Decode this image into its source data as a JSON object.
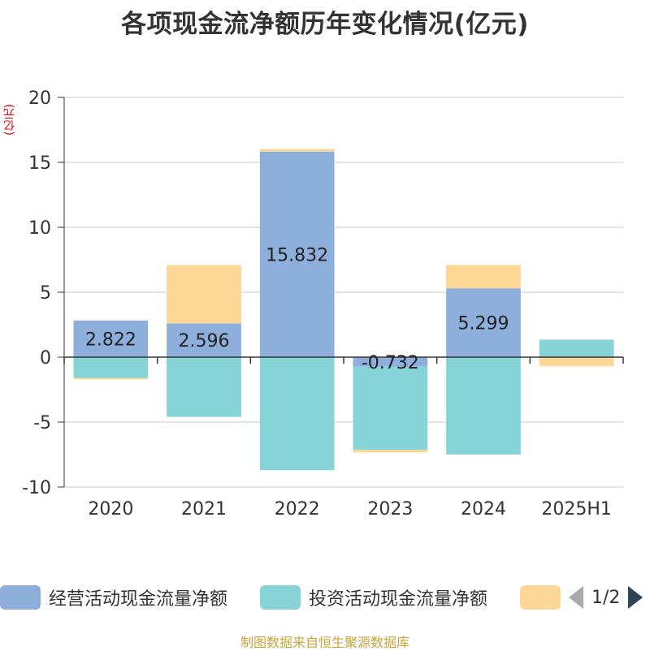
{
  "title": "各项现金流净额历年变化情况(亿元)",
  "unit_label": "(亿元)",
  "source": "制图数据来自恒生聚源数据库",
  "pager": {
    "text": "1/2"
  },
  "colors": {
    "operating": "#8eaedb",
    "investing": "#86d4d8",
    "financing": "#fdd795",
    "unit": "#dd0000",
    "source": "#c8a43a"
  },
  "chart_data": {
    "type": "bar",
    "stacked": true,
    "categories": [
      "2020",
      "2021",
      "2022",
      "2023",
      "2024",
      "2025H1"
    ],
    "ylim": [
      -10,
      20
    ],
    "yticks": [
      -10,
      -5,
      0,
      5,
      10,
      15,
      20
    ],
    "grid": true,
    "legend_position": "bottom",
    "series": [
      {
        "name": "经营活动现金流量净额",
        "values": [
          2.822,
          2.596,
          15.832,
          -0.732,
          5.299,
          0.05
        ],
        "labels": [
          "2.822",
          "2.596",
          "15.832",
          "-0.732",
          "5.299",
          ""
        ]
      },
      {
        "name": "投资活动现金流量净额",
        "values": [
          -1.6,
          -4.6,
          -8.7,
          -6.4,
          -7.5,
          1.3
        ],
        "labels": [
          "",
          "",
          "",
          "",
          "",
          ""
        ]
      },
      {
        "name": "",
        "values": [
          -0.1,
          4.5,
          0.2,
          -0.2,
          1.8,
          -0.7
        ],
        "labels": [
          "",
          "",
          "",
          "",
          "",
          ""
        ]
      }
    ]
  }
}
